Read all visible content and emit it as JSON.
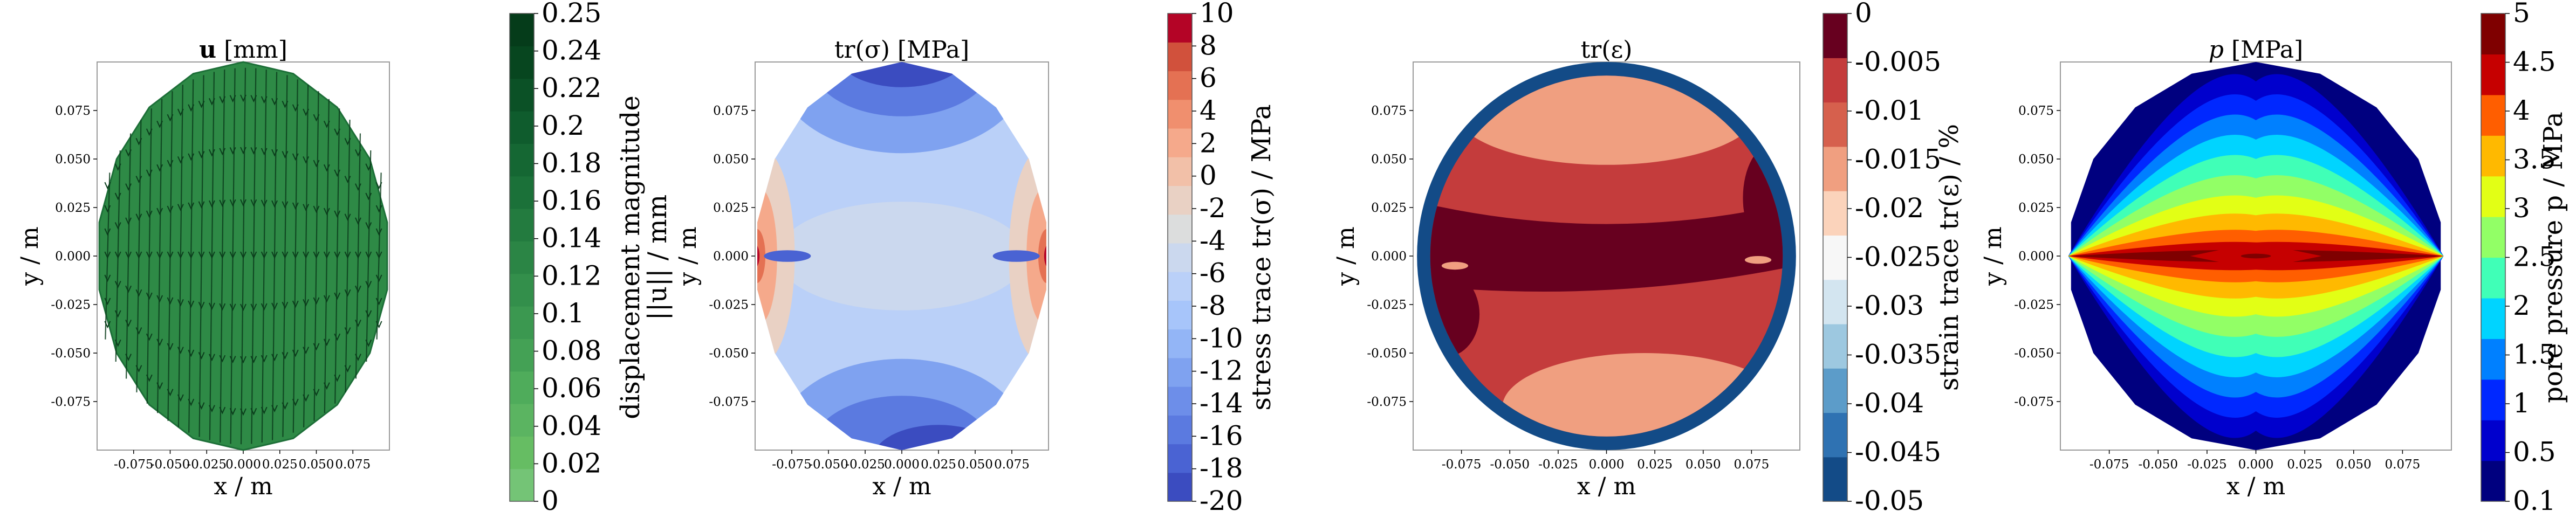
{
  "chart_data": [
    {
      "type": "contour",
      "title_bold": "u",
      "title_rest": " [mm]",
      "xlabel": "x / m",
      "ylabel": "y / m",
      "xlim": [
        -0.1,
        0.1
      ],
      "ylim": [
        -0.1,
        0.1
      ],
      "xticks": [
        "-0.075",
        "-0.050",
        "-0.025",
        "0.000",
        "0.025",
        "0.050",
        "0.075"
      ],
      "yticks": [
        "0.075",
        "0.050",
        "0.025",
        "0.000",
        "-0.025",
        "-0.050",
        "-0.075"
      ],
      "colorbar": {
        "label_line1": "displacement magnitude",
        "label_line2": "||u|| / mm",
        "ticks": [
          "0.25",
          "0.24",
          "0.22",
          "0.2",
          "0.18",
          "0.16",
          "0.14",
          "0.12",
          "0.1",
          "0.08",
          "0.06",
          "0.04",
          "0.02",
          "0"
        ],
        "range": [
          0,
          0.25
        ],
        "colors": [
          "#74c476",
          "#66bd63",
          "#5bb461",
          "#4fac5b",
          "#44a155",
          "#3b9850",
          "#338f4b",
          "#2b8545",
          "#237b3f",
          "#1b7139",
          "#156733",
          "#0f5c2d",
          "#0b5126",
          "#07461f",
          "#053c1a"
        ]
      },
      "field_color": "#2e8a46",
      "arrows": "vertical displacement vectors"
    },
    {
      "type": "contour",
      "title": "tr(σ) [MPa]",
      "xlabel": "x / m",
      "ylabel": "y / m",
      "xlim": [
        -0.1,
        0.1
      ],
      "ylim": [
        -0.1,
        0.1
      ],
      "xticks": [
        "-0.075",
        "-0.050",
        "-0.025",
        "0.000",
        "0.025",
        "0.050",
        "0.075"
      ],
      "yticks": [
        "0.075",
        "0.050",
        "0.025",
        "0.000",
        "-0.025",
        "-0.050",
        "-0.075"
      ],
      "colorbar": {
        "label": "stress trace tr(σ) / MPa",
        "ticks": [
          "10",
          "8",
          "6",
          "4",
          "2",
          "0",
          "-2",
          "-4",
          "-6",
          "-8",
          "-10",
          "-12",
          "-14",
          "-16",
          "-18",
          "-20"
        ],
        "range": [
          -20,
          10
        ],
        "colors": [
          "#3b4cc0",
          "#4a63d3",
          "#5b7ae0",
          "#6d8ee9",
          "#7fa2f0",
          "#93b5f6",
          "#a7c5fa",
          "#bad0f8",
          "#cbd8ee",
          "#dcdddd",
          "#e9d1c4",
          "#f2c0a8",
          "#f5a98b",
          "#f08f6e",
          "#e47153",
          "#d1513c",
          "#b40426"
        ]
      }
    },
    {
      "type": "contour",
      "title": "tr(ε)",
      "xlabel": "x / m",
      "ylabel": "y / m",
      "xlim": [
        -0.1,
        0.1
      ],
      "ylim": [
        -0.1,
        0.1
      ],
      "xticks": [
        "-0.075",
        "-0.050",
        "-0.025",
        "0.000",
        "0.025",
        "0.050",
        "0.075"
      ],
      "yticks": [
        "0.075",
        "0.050",
        "0.025",
        "0.000",
        "-0.025",
        "-0.050",
        "-0.075"
      ],
      "colorbar": {
        "label": "strain trace tr(ε) / %",
        "ticks": [
          "0",
          "-0.005",
          "-0.01",
          "-0.015",
          "-0.02",
          "-0.025",
          "-0.03",
          "-0.035",
          "-0.04",
          "-0.045",
          "-0.05"
        ],
        "range": [
          -0.05,
          0
        ],
        "colors": [
          "#134b87",
          "#2f72b2",
          "#5c9cc9",
          "#9dc8e0",
          "#d3e5f0",
          "#f7f7f7",
          "#fbd3bb",
          "#f09f80",
          "#d6604d",
          "#c43c3c",
          "#67001f"
        ]
      }
    },
    {
      "type": "contour",
      "title_italic": "p",
      "title_rest": " [MPa]",
      "xlabel": "x / m",
      "ylabel": "y / m",
      "xlim": [
        -0.1,
        0.1
      ],
      "ylim": [
        -0.1,
        0.1
      ],
      "xticks": [
        "-0.075",
        "-0.050",
        "-0.025",
        "0.000",
        "0.025",
        "0.050",
        "0.075"
      ],
      "yticks": [
        "0.075",
        "0.050",
        "0.025",
        "0.000",
        "-0.025",
        "-0.050",
        "-0.075"
      ],
      "colorbar": {
        "label": "pore pressure p / MPa",
        "ticks": [
          "5",
          "4.5",
          "4",
          "3.5",
          "3",
          "2.5",
          "2",
          "1.5",
          "1",
          "0.5",
          "0.1"
        ],
        "range": [
          0.1,
          5
        ],
        "colors": [
          "#00007f",
          "#0000cd",
          "#0028ff",
          "#0080ff",
          "#00d4ff",
          "#40ffb7",
          "#92ff66",
          "#e2ff15",
          "#ffb900",
          "#ff5e00",
          "#c60000",
          "#7f0000"
        ]
      }
    }
  ]
}
